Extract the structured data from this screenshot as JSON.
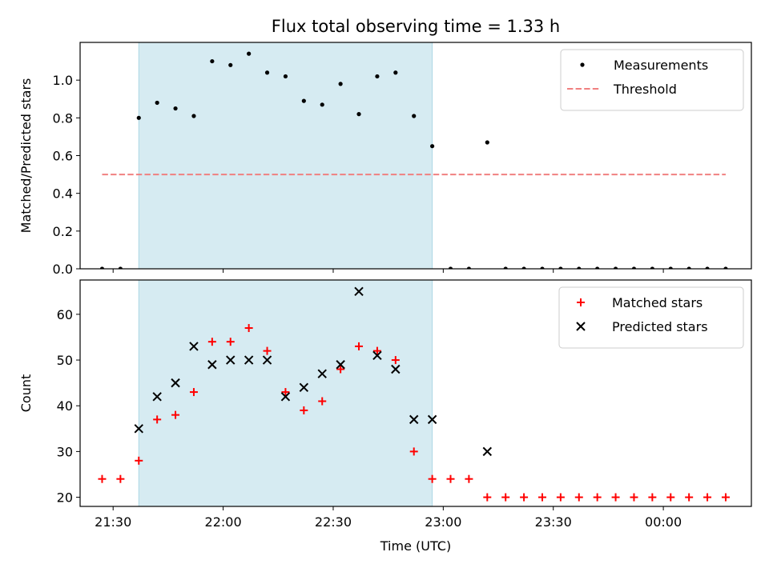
{
  "title": "Flux total observing time = 1.33 h",
  "colors": {
    "shade": "#add8e6",
    "threshold": "#f08080",
    "matched": "#ff0000",
    "predicted": "#000000",
    "measurement": "#000000"
  },
  "chart_data": [
    {
      "type": "scatter",
      "ylabel": "Matched/Predicted stars",
      "xlim": [
        "21:21",
        "00:24"
      ],
      "ylim": [
        0,
        1.2
      ],
      "yticks": [
        "0.0",
        "0.2",
        "0.4",
        "0.6",
        "0.8",
        "1.0"
      ],
      "grid": false,
      "legend_position": "top-right",
      "shaded_interval": [
        "21:37",
        "22:57"
      ],
      "series": [
        {
          "name": "Measurements",
          "marker": "dot",
          "x": [
            "21:27",
            "21:32",
            "21:37",
            "21:42",
            "21:47",
            "21:52",
            "21:57",
            "22:02",
            "22:07",
            "22:12",
            "22:17",
            "22:22",
            "22:27",
            "22:32",
            "22:37",
            "22:42",
            "22:47",
            "22:52",
            "22:57",
            "23:02",
            "23:07",
            "23:12",
            "23:17",
            "23:22",
            "23:27",
            "23:32",
            "23:37",
            "23:42",
            "23:47",
            "23:52",
            "23:57",
            "00:02",
            "00:07",
            "00:12",
            "00:17"
          ],
          "y": [
            0,
            0,
            0.8,
            0.88,
            0.85,
            0.81,
            1.1,
            1.08,
            1.14,
            1.04,
            1.02,
            0.89,
            0.87,
            0.98,
            0.82,
            1.02,
            1.04,
            0.81,
            0.65,
            0,
            0,
            0.67,
            0,
            0,
            0,
            0,
            0,
            0,
            0,
            0,
            0,
            0,
            0,
            0,
            0
          ]
        },
        {
          "name": "Threshold",
          "style": "dashed",
          "x": [
            "21:27",
            "00:17"
          ],
          "y": [
            0.5,
            0.5
          ]
        }
      ]
    },
    {
      "type": "scatter",
      "xlabel": "Time (UTC)",
      "ylabel": "Count",
      "xlim": [
        "21:21",
        "00:24"
      ],
      "ylim": [
        18,
        67.5
      ],
      "yticks": [
        "20",
        "30",
        "40",
        "50",
        "60"
      ],
      "xticks": [
        "21:30",
        "22:00",
        "22:30",
        "23:00",
        "23:30",
        "00:00"
      ],
      "grid": false,
      "legend_position": "top-right",
      "shaded_interval": [
        "21:37",
        "22:57"
      ],
      "series": [
        {
          "name": "Matched stars",
          "marker": "plus",
          "x": [
            "21:27",
            "21:32",
            "21:37",
            "21:42",
            "21:47",
            "21:52",
            "21:57",
            "22:02",
            "22:07",
            "22:12",
            "22:17",
            "22:22",
            "22:27",
            "22:32",
            "22:37",
            "22:42",
            "22:47",
            "22:52",
            "22:57",
            "23:02",
            "23:07",
            "23:12",
            "23:17",
            "23:22",
            "23:27",
            "23:32",
            "23:37",
            "23:42",
            "23:47",
            "23:52",
            "23:57",
            "00:02",
            "00:07",
            "00:12",
            "00:17"
          ],
          "y": [
            24,
            24,
            28,
            37,
            38,
            43,
            54,
            54,
            57,
            52,
            43,
            39,
            41,
            48,
            53,
            52,
            50,
            30,
            24,
            24,
            24,
            20,
            20,
            20,
            20,
            20,
            20,
            20,
            20,
            20,
            20,
            20,
            20,
            20,
            20
          ]
        },
        {
          "name": "Predicted stars",
          "marker": "x",
          "x": [
            "21:37",
            "21:42",
            "21:47",
            "21:52",
            "21:57",
            "22:02",
            "22:07",
            "22:12",
            "22:17",
            "22:22",
            "22:27",
            "22:32",
            "22:37",
            "22:42",
            "22:47",
            "22:52",
            "22:57",
            "23:12"
          ],
          "y": [
            35,
            42,
            45,
            53,
            49,
            50,
            50,
            50,
            42,
            44,
            47,
            49,
            65,
            51,
            48,
            37,
            37,
            30
          ]
        }
      ]
    }
  ]
}
